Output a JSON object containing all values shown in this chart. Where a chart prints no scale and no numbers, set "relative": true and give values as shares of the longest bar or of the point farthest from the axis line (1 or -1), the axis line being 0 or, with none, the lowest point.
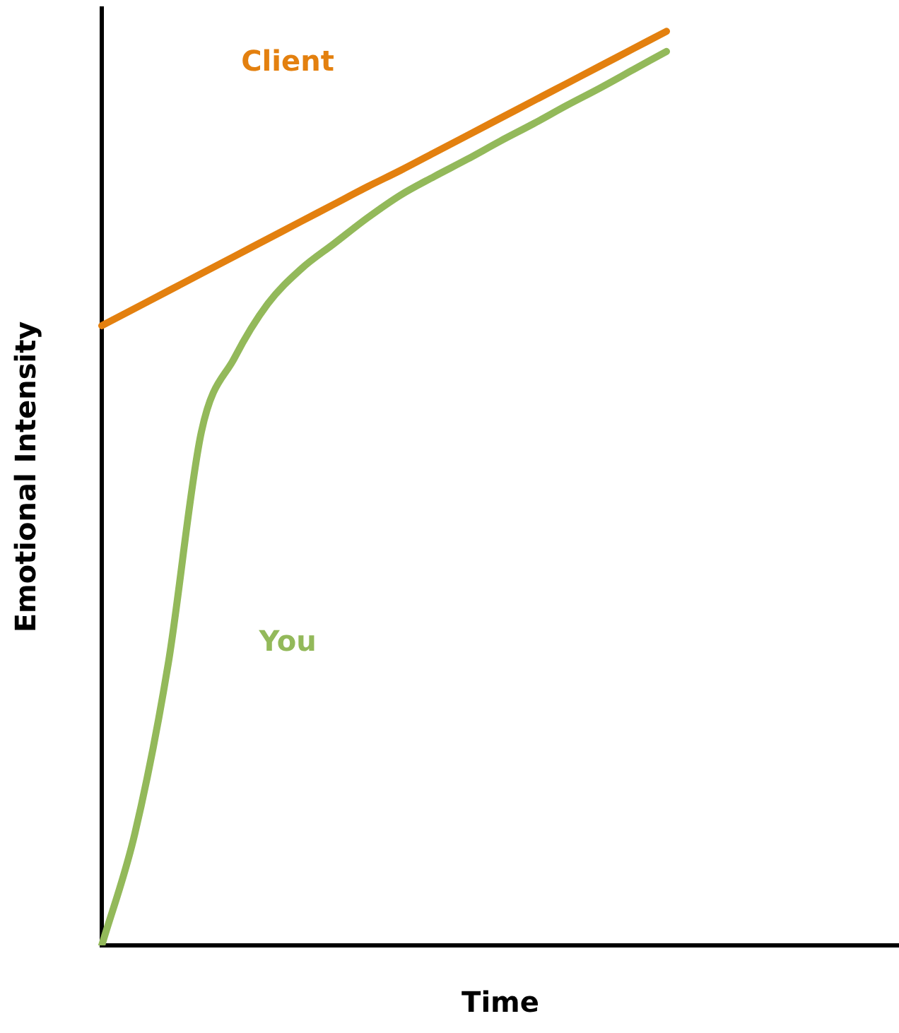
{
  "chart_data": {
    "type": "line",
    "relative": true,
    "xlabel": "Time",
    "ylabel": "Emotional Intensity",
    "categories": [
      null,
      null,
      null,
      null,
      null,
      null,
      null,
      null,
      null,
      null,
      null,
      null,
      null,
      null,
      null,
      null,
      null,
      null,
      null,
      null,
      null,
      null,
      null,
      null,
      null
    ],
    "series": [
      {
        "name": "Client",
        "color": "#e3800f",
        "values": [
          0.678,
          0.697,
          0.716,
          0.735,
          0.754,
          0.773,
          0.792,
          0.811,
          0.83,
          0.848,
          0.867,
          0.886,
          0.905,
          0.924,
          0.943,
          0.962,
          0.981,
          1,
          null,
          null,
          null,
          null,
          null,
          null,
          null
        ]
      },
      {
        "name": "You",
        "color": "#93b95a",
        "values": [
          0,
          0.123,
          0.308,
          0.562,
          0.643,
          0.702,
          0.74,
          0.768,
          0.796,
          0.821,
          0.841,
          0.86,
          0.88,
          0.899,
          0.919,
          0.938,
          0.958,
          0.978,
          null,
          null,
          null,
          null,
          null,
          null,
          null
        ]
      }
    ],
    "legend": false,
    "grid": false,
    "marker": "none",
    "line_style": "solid",
    "tick_labels": false
  }
}
